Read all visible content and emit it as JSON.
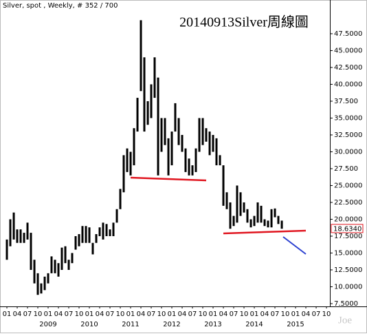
{
  "chart_data": {
    "type": "range",
    "header": "Silver, spot , Weekly, # 352 / 700",
    "title": "20140913Silver周線圖",
    "watermark": "Joe",
    "color": "#000000",
    "x": [
      2008,
      2008.083,
      2008.167,
      2008.25,
      2008.333,
      2008.417,
      2008.5,
      2008.583,
      2008.667,
      2008.75,
      2008.833,
      2008.917,
      2009,
      2009.083,
      2009.167,
      2009.25,
      2009.333,
      2009.417,
      2009.5,
      2009.583,
      2009.667,
      2009.75,
      2009.833,
      2009.917,
      2010,
      2010.083,
      2010.167,
      2010.25,
      2010.333,
      2010.417,
      2010.5,
      2010.583,
      2010.667,
      2010.75,
      2010.833,
      2010.917,
      2011,
      2011.083,
      2011.167,
      2011.25,
      2011.333,
      2011.417,
      2011.5,
      2011.583,
      2011.667,
      2011.75,
      2011.833,
      2011.917,
      2012,
      2012.083,
      2012.167,
      2012.25,
      2012.333,
      2012.417,
      2012.5,
      2012.583,
      2012.667,
      2012.75,
      2012.833,
      2012.917,
      2013,
      2013.083,
      2013.167,
      2013.25,
      2013.333,
      2013.417,
      2013.5,
      2013.583,
      2013.667,
      2013.75,
      2013.833,
      2013.917,
      2014,
      2014.083,
      2014.167,
      2014.25,
      2014.333,
      2014.417,
      2014.5,
      2014.583,
      2014.667
    ],
    "low": [
      14,
      16,
      17,
      16.5,
      16.5,
      16.5,
      17,
      12.5,
      10.5,
      8.8,
      9,
      9.5,
      10.5,
      12,
      12,
      11.5,
      12.5,
      13.5,
      12.5,
      13.5,
      15.5,
      16,
      16.5,
      16.5,
      16.5,
      14.8,
      16.5,
      17.5,
      17,
      17.5,
      17.5,
      17.5,
      19.5,
      21.5,
      24,
      27,
      26.5,
      28,
      33,
      39,
      33,
      34,
      35,
      38,
      26.5,
      30,
      31,
      26.5,
      28,
      33,
      31,
      30,
      27,
      26.5,
      26.5,
      27,
      30,
      31,
      31.5,
      29.5,
      30,
      28,
      28,
      22,
      21.5,
      18.6,
      19,
      19.5,
      20.5,
      21,
      19.5,
      18.8,
      19,
      19.5,
      19.5,
      19,
      18.8,
      18.8,
      20.3,
      19.3,
      18.6
    ],
    "high": [
      17,
      20,
      21,
      18.5,
      18.5,
      18,
      19.5,
      18,
      14,
      12,
      10.5,
      11.5,
      12,
      14.5,
      14,
      13.5,
      15.8,
      16,
      14,
      15,
      17.5,
      17.8,
      19,
      19,
      18.8,
      16.5,
      17.8,
      18.8,
      19.5,
      19.3,
      18.5,
      19.5,
      21.5,
      24.5,
      29.5,
      30.5,
      30,
      33.5,
      38,
      49.5,
      44,
      37.5,
      40,
      44,
      41,
      35,
      35,
      32,
      33,
      37.2,
      35,
      32.5,
      30.5,
      29,
      28,
      30.5,
      35,
      35,
      33.5,
      33,
      32.5,
      32,
      29.5,
      28,
      24,
      22.5,
      20.5,
      25,
      24,
      22.5,
      21.5,
      20,
      20.5,
      22.5,
      22,
      20,
      19.8,
      21.5,
      21.6,
      20.5,
      19.8
    ],
    "last_value": {
      "value": 18.634,
      "label": "18.6340"
    },
    "xlim": [
      2007.883,
      2015.833
    ],
    "ylim": [
      7.09,
      52.19
    ],
    "yticks": [
      {
        "value": 47.5,
        "label": "47.5000"
      },
      {
        "value": 45,
        "label": "45.0000"
      },
      {
        "value": 42.5,
        "label": "42.5000"
      },
      {
        "value": 40,
        "label": "40.0000"
      },
      {
        "value": 37.5,
        "label": "37.500"
      },
      {
        "value": 35,
        "label": "35.0000"
      },
      {
        "value": 32.5,
        "label": "32.5000"
      },
      {
        "value": 30,
        "label": "30.0000"
      },
      {
        "value": 27.5,
        "label": "27.500"
      },
      {
        "value": 25,
        "label": "25.0000"
      },
      {
        "value": 22.5,
        "label": "22.5000"
      },
      {
        "value": 20,
        "label": "20.0000"
      },
      {
        "value": 17.5,
        "label": "17.5000"
      },
      {
        "value": 15,
        "label": "15.0000"
      },
      {
        "value": 12.5,
        "label": "12.5000"
      },
      {
        "value": 10,
        "label": "10.0000"
      },
      {
        "value": 7.5,
        "label": "7.5000"
      }
    ],
    "xticks": [
      {
        "value": 2008,
        "label": "01"
      },
      {
        "value": 2008.25,
        "label": "04"
      },
      {
        "value": 2008.5,
        "label": "07"
      },
      {
        "value": 2008.75,
        "label": "10"
      },
      {
        "value": 2009,
        "label": "01"
      },
      {
        "value": 2009.25,
        "label": "04"
      },
      {
        "value": 2009.5,
        "label": "07"
      },
      {
        "value": 2009.75,
        "label": "10"
      },
      {
        "value": 2010,
        "label": "01"
      },
      {
        "value": 2010.25,
        "label": "04"
      },
      {
        "value": 2010.5,
        "label": "07"
      },
      {
        "value": 2010.75,
        "label": "10"
      },
      {
        "value": 2011,
        "label": "01"
      },
      {
        "value": 2011.25,
        "label": "04"
      },
      {
        "value": 2011.5,
        "label": "07"
      },
      {
        "value": 2011.75,
        "label": "10"
      },
      {
        "value": 2012,
        "label": "01"
      },
      {
        "value": 2012.25,
        "label": "04"
      },
      {
        "value": 2012.5,
        "label": "07"
      },
      {
        "value": 2012.75,
        "label": "10"
      },
      {
        "value": 2013,
        "label": "01"
      },
      {
        "value": 2013.25,
        "label": "04"
      },
      {
        "value": 2013.5,
        "label": "07"
      },
      {
        "value": 2013.75,
        "label": "10"
      },
      {
        "value": 2014,
        "label": "01"
      },
      {
        "value": 2014.25,
        "label": "04"
      },
      {
        "value": 2014.5,
        "label": "07"
      },
      {
        "value": 2014.75,
        "label": "10"
      },
      {
        "value": 2015,
        "label": "01"
      },
      {
        "value": 2015.25,
        "label": "04"
      },
      {
        "value": 2015.5,
        "label": "07"
      },
      {
        "value": 2015.75,
        "label": "10"
      }
    ],
    "year_labels": [
      {
        "value": 2009,
        "label": "2009"
      },
      {
        "value": 2010,
        "label": "2010"
      },
      {
        "value": 2011,
        "label": "2011"
      },
      {
        "value": 2012,
        "label": "2012"
      },
      {
        "value": 2013,
        "label": "2013"
      },
      {
        "value": 2014,
        "label": "2014"
      },
      {
        "value": 2015,
        "label": "2015"
      }
    ]
  }
}
